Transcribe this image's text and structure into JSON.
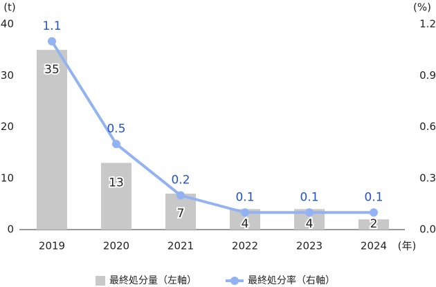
{
  "chart_data": {
    "type": "combo",
    "y_unit": "(t)",
    "y2_unit": "(%)",
    "x_unit": "(年)",
    "categories": [
      "2019",
      "2020",
      "2021",
      "2022",
      "2023",
      "2024"
    ],
    "series": [
      {
        "name": "最終処分量（左軸）",
        "type": "bar",
        "color": "#c8c8c8",
        "values": [
          35,
          13,
          7,
          4,
          4,
          2
        ]
      },
      {
        "name": "最終処分率（右軸）",
        "type": "line",
        "axis": "y2",
        "color": "#92b2f2",
        "label_color": "#2152c9",
        "values": [
          1.1,
          0.5,
          0.2,
          0.1,
          0.1,
          0.1
        ]
      }
    ],
    "ylim": [
      0,
      40
    ],
    "yticks": [
      0,
      10,
      20,
      30,
      40
    ],
    "y2lim": [
      0,
      1.2
    ],
    "y2ticks": [
      {
        "value": 0,
        "label": "0.0"
      },
      0.3,
      0.6,
      0.9,
      1.2
    ],
    "grid": false,
    "legend": "bottom"
  }
}
